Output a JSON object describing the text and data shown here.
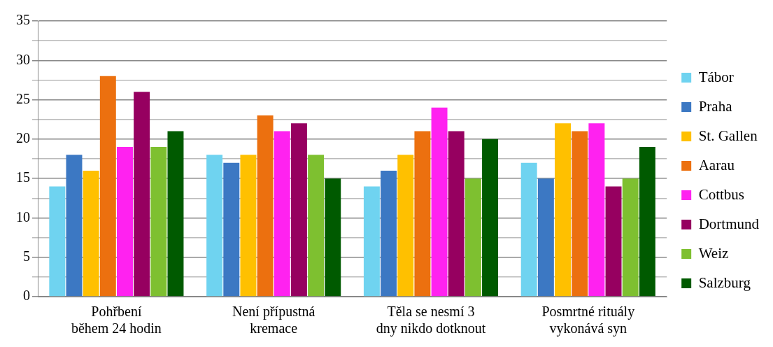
{
  "chart_data": {
    "type": "bar",
    "categories": [
      "Pohřbení během 24 hodin",
      "Není přípustná kremace",
      "Těla se nesmí 3 dny nikdo dotknout",
      "Posmrtné rituály vykonává syn"
    ],
    "series": [
      {
        "name": "Tábor",
        "color": "#6fd3f0",
        "values": [
          14,
          18,
          14,
          17
        ]
      },
      {
        "name": "Praha",
        "color": "#3c78c3",
        "values": [
          18,
          17,
          16,
          15
        ]
      },
      {
        "name": "St. Gallen",
        "color": "#ffc000",
        "values": [
          16,
          18,
          18,
          22
        ]
      },
      {
        "name": "Aarau",
        "color": "#ec700f",
        "values": [
          28,
          23,
          21,
          21
        ]
      },
      {
        "name": "Cottbus",
        "color": "#ff22f0",
        "values": [
          19,
          21,
          24,
          22
        ]
      },
      {
        "name": "Dortmund",
        "color": "#960060",
        "values": [
          26,
          22,
          21,
          14
        ]
      },
      {
        "name": "Weiz",
        "color": "#7ec030",
        "values": [
          19,
          18,
          15,
          15
        ]
      },
      {
        "name": "Salzburg",
        "color": "#005a00",
        "values": [
          21,
          15,
          20,
          19
        ]
      }
    ],
    "ylim": [
      0,
      35
    ],
    "yticks": [
      0,
      {
        "value": 2.5,
        "label": null
      },
      5,
      {
        "value": 7.5,
        "label": null
      },
      10,
      {
        "value": 12.5,
        "label": null
      },
      15,
      {
        "value": 17.5,
        "label": null
      },
      20,
      {
        "value": 22.5,
        "label": null
      },
      25,
      {
        "value": 27.5,
        "label": null
      },
      30,
      {
        "value": 32.5,
        "label": null
      },
      35
    ],
    "grid": true,
    "legend": "right"
  }
}
